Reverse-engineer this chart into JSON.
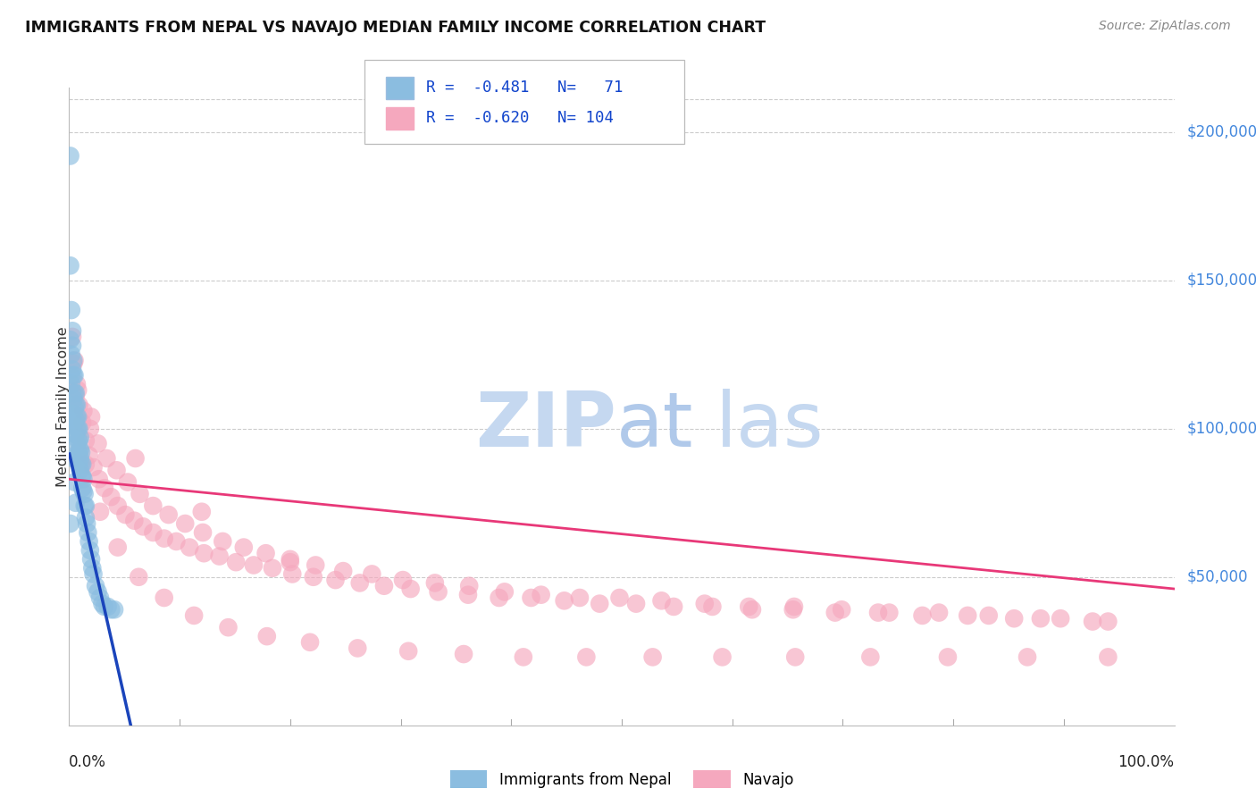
{
  "title": "IMMIGRANTS FROM NEPAL VS NAVAJO MEDIAN FAMILY INCOME CORRELATION CHART",
  "source": "Source: ZipAtlas.com",
  "ylabel": "Median Family Income",
  "ytick_values": [
    50000,
    100000,
    150000,
    200000
  ],
  "ytick_labels": [
    "$50,000",
    "$100,000",
    "$150,000",
    "$200,000"
  ],
  "ylim": [
    0,
    215000
  ],
  "xlim": [
    0.0,
    1.0
  ],
  "color_nepal": "#8bbde0",
  "color_navajo": "#f5a8be",
  "color_line_nepal": "#1a44bb",
  "color_line_navajo": "#e83878",
  "color_line_ext": "#aabbcc",
  "color_right_labels": "#4488dd",
  "watermark_zip": "#c5d8f0",
  "watermark_atlas": "#a8c4e8",
  "nepal_x": [
    0.001,
    0.001,
    0.001,
    0.002,
    0.002,
    0.002,
    0.003,
    0.003,
    0.003,
    0.003,
    0.004,
    0.004,
    0.004,
    0.004,
    0.005,
    0.005,
    0.005,
    0.005,
    0.006,
    0.006,
    0.006,
    0.006,
    0.007,
    0.007,
    0.007,
    0.007,
    0.008,
    0.008,
    0.008,
    0.008,
    0.009,
    0.009,
    0.009,
    0.009,
    0.01,
    0.01,
    0.01,
    0.01,
    0.011,
    0.011,
    0.011,
    0.012,
    0.012,
    0.012,
    0.013,
    0.013,
    0.014,
    0.014,
    0.015,
    0.015,
    0.016,
    0.017,
    0.018,
    0.019,
    0.02,
    0.021,
    0.022,
    0.024,
    0.026,
    0.028,
    0.03,
    0.032,
    0.035,
    0.038,
    0.041,
    0.001,
    0.002,
    0.003,
    0.004,
    0.005,
    0.006
  ],
  "nepal_y": [
    192000,
    155000,
    68000,
    140000,
    125000,
    118000,
    133000,
    128000,
    120000,
    112000,
    123000,
    118000,
    110000,
    105000,
    118000,
    112000,
    107000,
    102000,
    112000,
    108000,
    103000,
    98000,
    108000,
    104000,
    100000,
    95000,
    104000,
    100000,
    96000,
    92000,
    100000,
    96000,
    92000,
    88000,
    97000,
    93000,
    90000,
    86000,
    92000,
    88000,
    84000,
    88000,
    84000,
    80000,
    83000,
    79000,
    78000,
    74000,
    74000,
    70000,
    68000,
    65000,
    62000,
    59000,
    56000,
    53000,
    51000,
    47000,
    45000,
    43000,
    41000,
    40000,
    40000,
    39000,
    39000,
    130000,
    115000,
    100000,
    90000,
    82000,
    75000
  ],
  "navajo_x": [
    0.003,
    0.005,
    0.007,
    0.009,
    0.012,
    0.015,
    0.018,
    0.022,
    0.027,
    0.032,
    0.038,
    0.044,
    0.051,
    0.059,
    0.067,
    0.076,
    0.086,
    0.097,
    0.109,
    0.122,
    0.136,
    0.151,
    0.167,
    0.184,
    0.202,
    0.221,
    0.241,
    0.263,
    0.285,
    0.309,
    0.334,
    0.361,
    0.389,
    0.418,
    0.448,
    0.48,
    0.513,
    0.547,
    0.582,
    0.618,
    0.655,
    0.693,
    0.732,
    0.772,
    0.813,
    0.855,
    0.897,
    0.94,
    0.004,
    0.008,
    0.013,
    0.019,
    0.026,
    0.034,
    0.043,
    0.053,
    0.064,
    0.076,
    0.09,
    0.105,
    0.121,
    0.139,
    0.158,
    0.178,
    0.2,
    0.223,
    0.248,
    0.274,
    0.302,
    0.331,
    0.362,
    0.394,
    0.427,
    0.462,
    0.498,
    0.536,
    0.575,
    0.615,
    0.656,
    0.699,
    0.742,
    0.787,
    0.832,
    0.879,
    0.926,
    0.006,
    0.015,
    0.028,
    0.044,
    0.063,
    0.086,
    0.113,
    0.144,
    0.179,
    0.218,
    0.261,
    0.307,
    0.357,
    0.411,
    0.468,
    0.528,
    0.591,
    0.657,
    0.725,
    0.795,
    0.867,
    0.94,
    0.02,
    0.06,
    0.12,
    0.2
  ],
  "navajo_y": [
    131000,
    123000,
    115000,
    108000,
    102000,
    96000,
    91000,
    87000,
    83000,
    80000,
    77000,
    74000,
    71000,
    69000,
    67000,
    65000,
    63000,
    62000,
    60000,
    58000,
    57000,
    55000,
    54000,
    53000,
    51000,
    50000,
    49000,
    48000,
    47000,
    46000,
    45000,
    44000,
    43000,
    43000,
    42000,
    41000,
    41000,
    40000,
    40000,
    39000,
    39000,
    38000,
    38000,
    37000,
    37000,
    36000,
    36000,
    35000,
    122000,
    113000,
    106000,
    100000,
    95000,
    90000,
    86000,
    82000,
    78000,
    74000,
    71000,
    68000,
    65000,
    62000,
    60000,
    58000,
    56000,
    54000,
    52000,
    51000,
    49000,
    48000,
    47000,
    45000,
    44000,
    43000,
    43000,
    42000,
    41000,
    40000,
    40000,
    39000,
    38000,
    38000,
    37000,
    36000,
    35000,
    111000,
    88000,
    72000,
    60000,
    50000,
    43000,
    37000,
    33000,
    30000,
    28000,
    26000,
    25000,
    24000,
    23000,
    23000,
    23000,
    23000,
    23000,
    23000,
    23000,
    23000,
    23000,
    104000,
    90000,
    72000,
    55000
  ],
  "nepal_line_x0": 0.0,
  "nepal_line_y0": 92000,
  "nepal_line_slope": -1650000,
  "nepal_line_solid_end": 0.155,
  "nepal_line_dash_end": 0.5,
  "navajo_line_x0": 0.0,
  "navajo_line_y0": 83000,
  "navajo_line_x1": 1.0,
  "navajo_line_y1": 46000
}
